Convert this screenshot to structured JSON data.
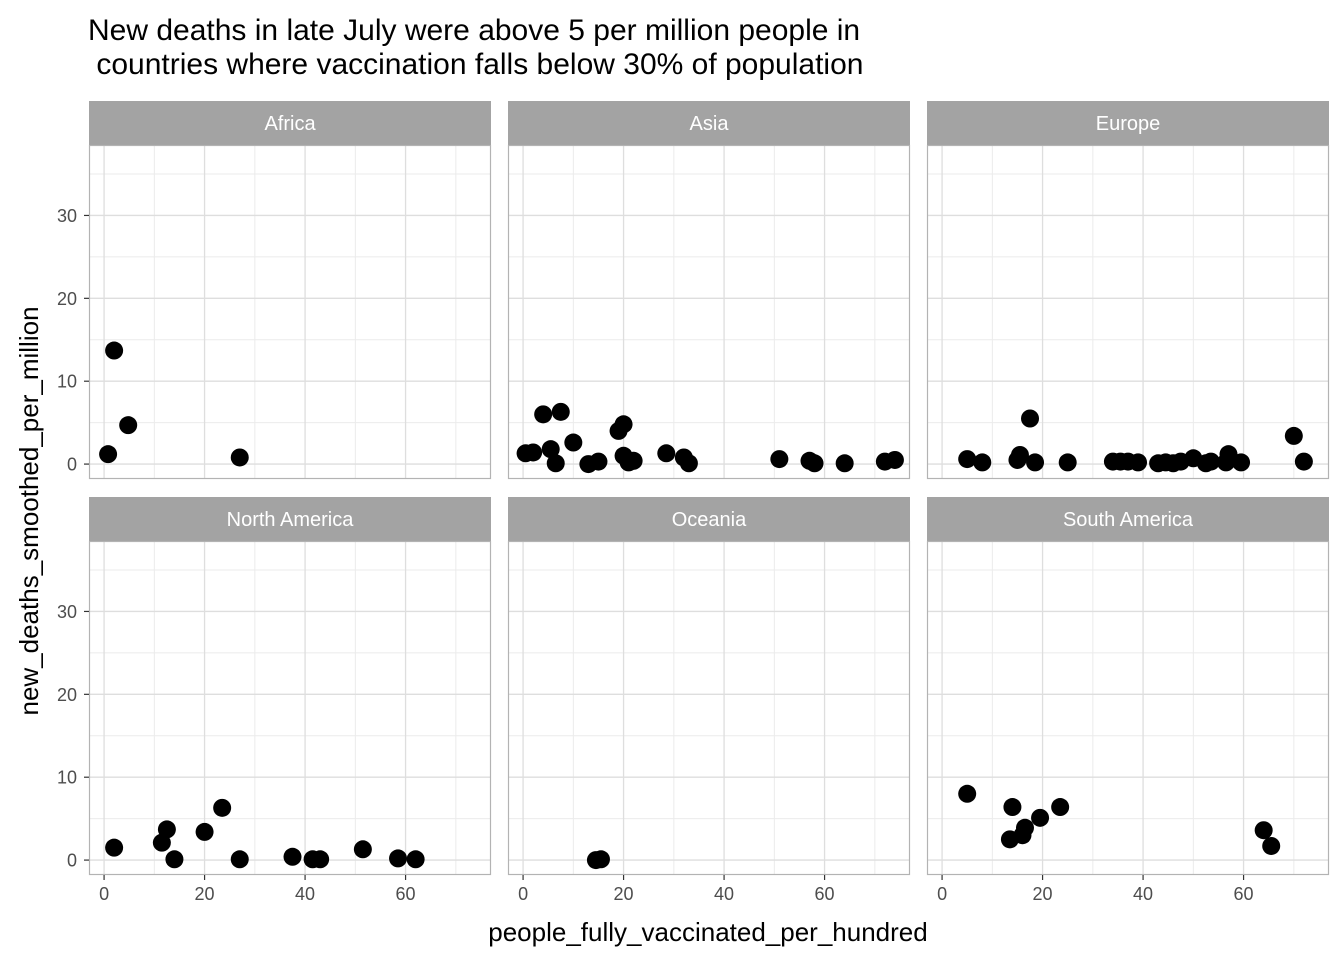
{
  "chart_data": {
    "type": "scatter",
    "title": "New deaths in late July were above 5 per million people in\n countries where vaccination falls below 30% of population",
    "xlabel": "people_fully_vaccinated_per_hundred",
    "ylabel": "new_deaths_smoothed_per_million",
    "xlim": [
      -3,
      77
    ],
    "ylim": [
      -1.8,
      38.5
    ],
    "x_ticks": [
      0,
      20,
      40,
      60
    ],
    "y_ticks": [
      0,
      10,
      20,
      30
    ],
    "grid": true,
    "facets": [
      {
        "name": "Africa",
        "points": [
          [
            0.8,
            1.2
          ],
          [
            2,
            13.7
          ],
          [
            4.8,
            4.7
          ],
          [
            27,
            0.8
          ]
        ]
      },
      {
        "name": "Asia",
        "points": [
          [
            0.5,
            1.3
          ],
          [
            2,
            1.4
          ],
          [
            4,
            6
          ],
          [
            5.5,
            1.8
          ],
          [
            6.5,
            0.1
          ],
          [
            7.5,
            6.3
          ],
          [
            10,
            2.6
          ],
          [
            13,
            0
          ],
          [
            15,
            0.3
          ],
          [
            19,
            4
          ],
          [
            20,
            4.8
          ],
          [
            20,
            1
          ],
          [
            21,
            0.2
          ],
          [
            22,
            0.4
          ],
          [
            28.5,
            1.3
          ],
          [
            32,
            0.8
          ],
          [
            33,
            0.1
          ],
          [
            51,
            0.6
          ],
          [
            57,
            0.4
          ],
          [
            58,
            0.1
          ],
          [
            64,
            0.1
          ],
          [
            72,
            0.3
          ],
          [
            74,
            0.5
          ]
        ]
      },
      {
        "name": "Europe",
        "points": [
          [
            5,
            0.6
          ],
          [
            8,
            0.2
          ],
          [
            15,
            0.5
          ],
          [
            15.5,
            1.1
          ],
          [
            17.5,
            5.5
          ],
          [
            18.5,
            0.2
          ],
          [
            25,
            0.2
          ],
          [
            34,
            0.3
          ],
          [
            35.5,
            0.3
          ],
          [
            37,
            0.3
          ],
          [
            39,
            0.2
          ],
          [
            43,
            0.1
          ],
          [
            44.5,
            0.2
          ],
          [
            46,
            0.1
          ],
          [
            47.5,
            0.3
          ],
          [
            50,
            0.7
          ],
          [
            52.5,
            0.1
          ],
          [
            53.5,
            0.3
          ],
          [
            56.5,
            0.2
          ],
          [
            57,
            1.2
          ],
          [
            59.5,
            0.2
          ],
          [
            70,
            3.4
          ],
          [
            72,
            0.3
          ]
        ]
      },
      {
        "name": "North America",
        "points": [
          [
            2,
            1.5
          ],
          [
            11.5,
            2.1
          ],
          [
            12.5,
            3.7
          ],
          [
            14,
            0.1
          ],
          [
            20,
            3.4
          ],
          [
            23.5,
            6.3
          ],
          [
            27,
            0.1
          ],
          [
            37.5,
            0.4
          ],
          [
            41.5,
            0.1
          ],
          [
            43,
            0.1
          ],
          [
            51.5,
            1.3
          ],
          [
            58.5,
            0.2
          ],
          [
            62,
            0.1
          ]
        ]
      },
      {
        "name": "Oceania",
        "points": [
          [
            14.5,
            0
          ],
          [
            15.5,
            0.1
          ]
        ]
      },
      {
        "name": "South America",
        "points": [
          [
            5,
            8
          ],
          [
            13.5,
            2.5
          ],
          [
            14,
            6.4
          ],
          [
            16,
            3
          ],
          [
            16.5,
            3.9
          ],
          [
            19.5,
            5.1
          ],
          [
            23.5,
            6.4
          ],
          [
            64,
            3.6
          ],
          [
            65.5,
            1.7
          ]
        ]
      }
    ]
  }
}
